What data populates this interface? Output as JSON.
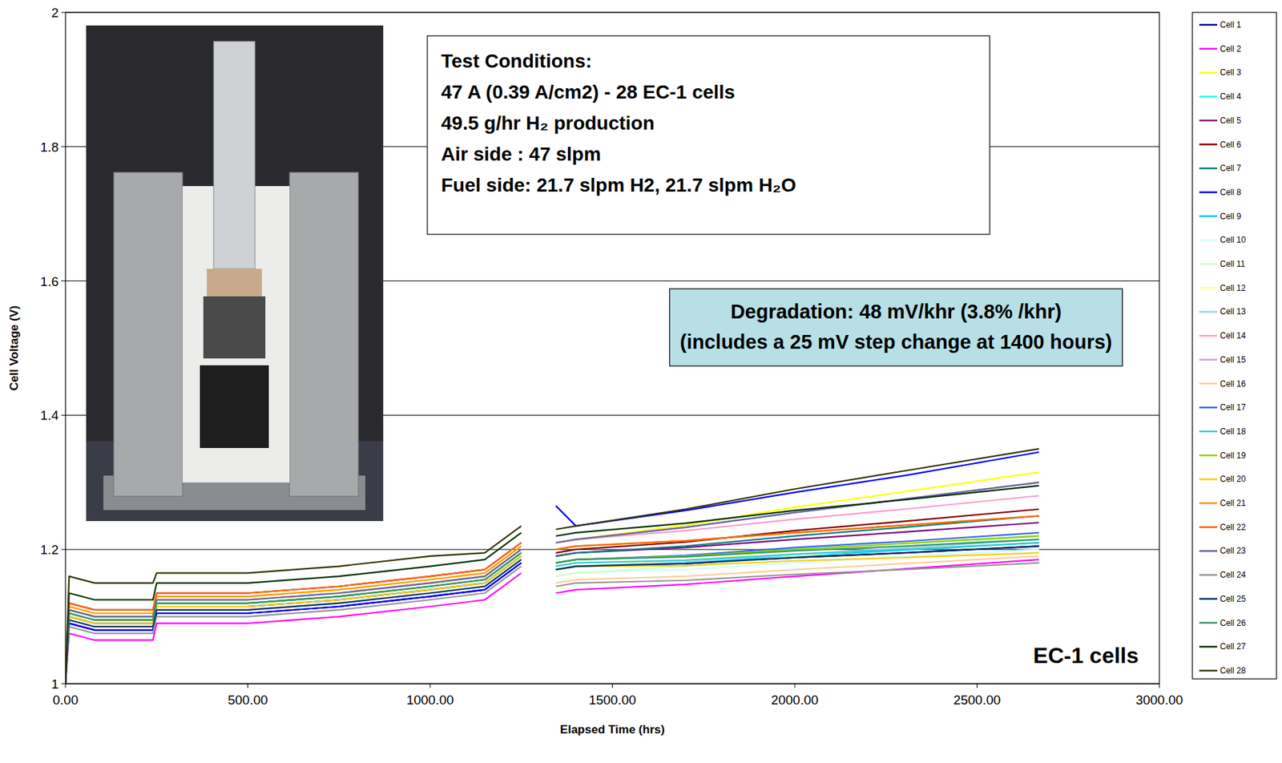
{
  "chart_data": {
    "type": "line",
    "x_label": "Elapsed Time (hrs)",
    "y_label": "Cell Voltage (V)",
    "x": [
      0,
      10,
      80,
      240,
      250,
      500,
      750,
      1000,
      1150,
      1200,
      1250,
      1300,
      1345,
      1400,
      1700,
      2000,
      2300,
      2670
    ],
    "xlim": [
      0,
      3000
    ],
    "xticks": [
      {
        "value": 0,
        "label": "0.00"
      },
      {
        "value": 500,
        "label": "500.00"
      },
      {
        "value": 1000,
        "label": "1000.00"
      },
      {
        "value": 1500,
        "label": "1500.00"
      },
      {
        "value": 2000,
        "label": "2000.00"
      },
      {
        "value": 2500,
        "label": "2500.00"
      },
      {
        "value": 3000,
        "label": "3000.00"
      }
    ],
    "ylim": [
      1,
      2
    ],
    "yticks": [
      1,
      1.2,
      1.4,
      1.6,
      1.8,
      2
    ],
    "grid": true,
    "legend": "right",
    "annotations": {
      "test_conditions": [
        "Test Conditions:",
        "47 A (0.39 A/cm2) - 28 EC-1 cells",
        "49.5 g/hr H₂ production",
        "Air side : 47 slpm",
        "Fuel side: 21.7 slpm H2, 21.7 slpm H₂O"
      ],
      "degradation": [
        "Degradation: 48 mV/khr (3.8% /khr)",
        "(includes a 25 mV step change at 1400 hours)"
      ],
      "cell_type": "EC-1 cells"
    },
    "series": [
      {
        "name": "Cell 1",
        "color": "#000080",
        "values": [
          1.0,
          1.09,
          1.08,
          1.08,
          1.105,
          1.105,
          1.115,
          1.13,
          1.14,
          1.16,
          1.18,
          null,
          1.17,
          1.175,
          1.179,
          1.188,
          1.195,
          1.205
        ]
      },
      {
        "name": "Cell 2",
        "color": "#ff00ff",
        "values": [
          1.0,
          1.075,
          1.065,
          1.065,
          1.09,
          1.09,
          1.1,
          1.115,
          1.125,
          1.145,
          1.165,
          null,
          1.135,
          1.14,
          1.148,
          1.16,
          1.171,
          1.185
        ]
      },
      {
        "name": "Cell 3",
        "color": "#ffff00",
        "values": [
          1.0,
          1.115,
          1.105,
          1.105,
          1.13,
          1.13,
          1.14,
          1.155,
          1.165,
          1.185,
          1.205,
          null,
          1.21,
          1.215,
          1.236,
          1.263,
          1.286,
          1.315
        ]
      },
      {
        "name": "Cell 4",
        "color": "#00ffff",
        "values": [
          1.0,
          1.1,
          1.09,
          1.09,
          1.115,
          1.115,
          1.125,
          1.14,
          1.15,
          1.17,
          1.19,
          null,
          1.18,
          1.185,
          1.19,
          1.2,
          1.209,
          1.22
        ]
      },
      {
        "name": "Cell 5",
        "color": "#800080",
        "values": [
          1.0,
          1.105,
          1.095,
          1.095,
          1.12,
          1.12,
          1.13,
          1.145,
          1.155,
          1.175,
          1.195,
          null,
          1.19,
          1.195,
          1.203,
          1.215,
          1.226,
          1.24
        ]
      },
      {
        "name": "Cell 6",
        "color": "#800000",
        "values": [
          1.0,
          1.12,
          1.11,
          1.11,
          1.135,
          1.135,
          1.145,
          1.16,
          1.17,
          1.19,
          1.21,
          null,
          1.195,
          1.2,
          1.211,
          1.228,
          1.242,
          1.26
        ]
      },
      {
        "name": "Cell 7",
        "color": "#008080",
        "values": [
          1.0,
          1.11,
          1.1,
          1.1,
          1.125,
          1.125,
          1.135,
          1.15,
          1.16,
          1.18,
          1.2,
          null,
          1.19,
          1.195,
          1.205,
          1.22,
          1.233,
          1.25
        ]
      },
      {
        "name": "Cell 8",
        "color": "#0000ff",
        "values": [
          1.0,
          1.09,
          1.08,
          1.08,
          1.105,
          1.105,
          1.115,
          1.13,
          1.14,
          1.16,
          1.18,
          null,
          1.265,
          1.235,
          1.258,
          1.285,
          1.31,
          1.345
        ]
      },
      {
        "name": "Cell 9",
        "color": "#00ccff",
        "values": [
          1.0,
          1.1,
          1.09,
          1.09,
          1.115,
          1.115,
          1.125,
          1.14,
          1.15,
          1.17,
          1.19,
          null,
          1.17,
          1.175,
          1.18,
          1.19,
          1.199,
          1.21
        ]
      },
      {
        "name": "Cell 10",
        "color": "#ccffff",
        "values": [
          1.0,
          1.1,
          1.09,
          1.09,
          1.115,
          1.115,
          1.125,
          1.14,
          1.15,
          1.17,
          1.19,
          null,
          1.16,
          1.165,
          1.17,
          1.18,
          1.189,
          1.2
        ]
      },
      {
        "name": "Cell 11",
        "color": "#ccffcc",
        "values": [
          1.0,
          1.1,
          1.09,
          1.09,
          1.115,
          1.115,
          1.125,
          1.14,
          1.15,
          1.17,
          1.19,
          null,
          1.16,
          1.165,
          1.175,
          1.19,
          1.203,
          1.22
        ]
      },
      {
        "name": "Cell 12",
        "color": "#ffff99",
        "values": [
          1.0,
          1.11,
          1.1,
          1.1,
          1.125,
          1.125,
          1.135,
          1.15,
          1.16,
          1.18,
          1.2,
          null,
          1.17,
          1.175,
          1.184,
          1.198,
          1.21,
          1.225
        ]
      },
      {
        "name": "Cell 13",
        "color": "#99ccff",
        "values": [
          1.0,
          1.1,
          1.09,
          1.09,
          1.115,
          1.115,
          1.125,
          1.14,
          1.15,
          1.17,
          1.19,
          null,
          1.17,
          1.175,
          1.181,
          1.193,
          1.202,
          1.215
        ]
      },
      {
        "name": "Cell 14",
        "color": "#ff99cc",
        "values": [
          1.0,
          1.11,
          1.1,
          1.1,
          1.125,
          1.125,
          1.135,
          1.15,
          1.16,
          1.18,
          1.2,
          null,
          1.21,
          1.215,
          1.228,
          1.245,
          1.26,
          1.28
        ]
      },
      {
        "name": "Cell 15",
        "color": "#cc99ff",
        "values": [
          1.0,
          1.12,
          1.11,
          1.11,
          1.135,
          1.135,
          1.145,
          1.16,
          1.17,
          1.19,
          1.21,
          null,
          1.21,
          1.215,
          1.233,
          1.255,
          1.275,
          1.3
        ]
      },
      {
        "name": "Cell 16",
        "color": "#ffcc99",
        "values": [
          1.0,
          1.095,
          1.085,
          1.085,
          1.11,
          1.11,
          1.12,
          1.135,
          1.145,
          1.165,
          1.185,
          null,
          1.15,
          1.155,
          1.16,
          1.17,
          1.179,
          1.19
        ]
      },
      {
        "name": "Cell 17",
        "color": "#3366ff",
        "values": [
          1.0,
          1.1,
          1.09,
          1.09,
          1.115,
          1.115,
          1.125,
          1.14,
          1.15,
          1.17,
          1.19,
          null,
          1.18,
          1.185,
          1.191,
          1.203,
          1.212,
          1.225
        ]
      },
      {
        "name": "Cell 18",
        "color": "#33cccc",
        "values": [
          1.0,
          1.105,
          1.095,
          1.095,
          1.12,
          1.12,
          1.13,
          1.145,
          1.155,
          1.175,
          1.195,
          null,
          1.175,
          1.18,
          1.184,
          1.193,
          1.2,
          1.21
        ]
      },
      {
        "name": "Cell 19",
        "color": "#99cc00",
        "values": [
          1.0,
          1.105,
          1.095,
          1.095,
          1.12,
          1.12,
          1.13,
          1.145,
          1.155,
          1.175,
          1.195,
          null,
          1.18,
          1.185,
          1.19,
          1.2,
          1.209,
          1.22
        ]
      },
      {
        "name": "Cell 20",
        "color": "#ffcc00",
        "values": [
          1.0,
          1.1,
          1.09,
          1.09,
          1.115,
          1.115,
          1.125,
          1.14,
          1.15,
          1.17,
          1.19,
          null,
          1.17,
          1.175,
          1.176,
          1.183,
          1.188,
          1.195
        ]
      },
      {
        "name": "Cell 21",
        "color": "#ff9900",
        "values": [
          1.0,
          1.115,
          1.105,
          1.105,
          1.13,
          1.13,
          1.14,
          1.155,
          1.165,
          1.185,
          1.205,
          null,
          1.2,
          1.205,
          1.213,
          1.225,
          1.236,
          1.25
        ]
      },
      {
        "name": "Cell 22",
        "color": "#ff6600",
        "values": [
          1.0,
          1.12,
          1.11,
          1.11,
          1.135,
          1.135,
          1.145,
          1.16,
          1.17,
          1.19,
          1.21,
          null,
          1.2,
          1.205,
          1.213,
          1.225,
          1.236,
          1.25
        ]
      },
      {
        "name": "Cell 23",
        "color": "#666699",
        "values": [
          1.0,
          1.11,
          1.1,
          1.1,
          1.125,
          1.125,
          1.135,
          1.15,
          1.16,
          1.18,
          1.2,
          null,
          1.21,
          1.215,
          1.233,
          1.255,
          1.275,
          1.3
        ]
      },
      {
        "name": "Cell 24",
        "color": "#969696",
        "values": [
          1.0,
          1.085,
          1.075,
          1.075,
          1.1,
          1.1,
          1.11,
          1.125,
          1.135,
          1.155,
          1.175,
          null,
          1.145,
          1.15,
          1.154,
          1.163,
          1.17,
          1.18
        ]
      },
      {
        "name": "Cell 25",
        "color": "#003366",
        "values": [
          1.0,
          1.095,
          1.085,
          1.085,
          1.11,
          1.11,
          1.12,
          1.135,
          1.145,
          1.165,
          1.185,
          null,
          1.17,
          1.175,
          1.179,
          1.188,
          1.195,
          1.205
        ]
      },
      {
        "name": "Cell 26",
        "color": "#339966",
        "values": [
          1.0,
          1.105,
          1.095,
          1.095,
          1.12,
          1.12,
          1.13,
          1.145,
          1.155,
          1.175,
          1.195,
          null,
          1.18,
          1.185,
          1.189,
          1.198,
          1.205,
          1.215
        ]
      },
      {
        "name": "Cell 27",
        "color": "#003300",
        "values": [
          1.0,
          1.135,
          1.125,
          1.125,
          1.15,
          1.15,
          1.16,
          1.175,
          1.185,
          1.205,
          1.225,
          null,
          1.22,
          1.225,
          1.239,
          1.258,
          1.274,
          1.295
        ]
      },
      {
        "name": "Cell 28",
        "color": "#333300",
        "values": [
          1.0,
          1.16,
          1.15,
          1.15,
          1.165,
          1.165,
          1.175,
          1.19,
          1.195,
          1.215,
          1.235,
          null,
          1.23,
          1.235,
          1.26,
          1.29,
          1.317,
          1.35
        ]
      }
    ]
  }
}
